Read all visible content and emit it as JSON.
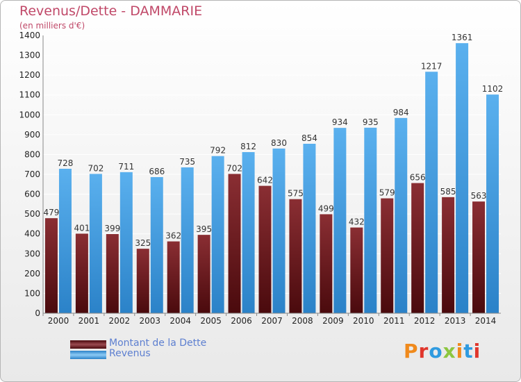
{
  "title": "Revenus/Dette - DAMMARIE",
  "subtitle": "(en milliers d'€)",
  "logo_text": "Proxiti",
  "colors": {
    "dette": "#7a1f24",
    "revenus": "#3f9ee0",
    "title": "#c04868"
  },
  "chart_data": {
    "type": "bar",
    "title": "Revenus/Dette - DAMMARIE",
    "ylabel": "(en milliers d'€)",
    "xlabel": "",
    "ylim": [
      0,
      1400
    ],
    "yticks": [
      0,
      100,
      200,
      300,
      400,
      500,
      600,
      700,
      800,
      900,
      1000,
      1100,
      1200,
      1300,
      1400
    ],
    "grid": true,
    "legend": "bottom-left",
    "categories": [
      "2000",
      "2001",
      "2002",
      "2003",
      "2004",
      "2005",
      "2006",
      "2007",
      "2008",
      "2009",
      "2010",
      "2011",
      "2012",
      "2013",
      "2014"
    ],
    "series": [
      {
        "name": "Montant de la Dette",
        "values": [
          479,
          401,
          399,
          325,
          362,
          395,
          702,
          642,
          575,
          499,
          432,
          579,
          656,
          585,
          563
        ]
      },
      {
        "name": "Revenus",
        "values": [
          728,
          702,
          711,
          686,
          735,
          792,
          812,
          830,
          854,
          934,
          935,
          984,
          1217,
          1361,
          1102
        ]
      }
    ]
  }
}
